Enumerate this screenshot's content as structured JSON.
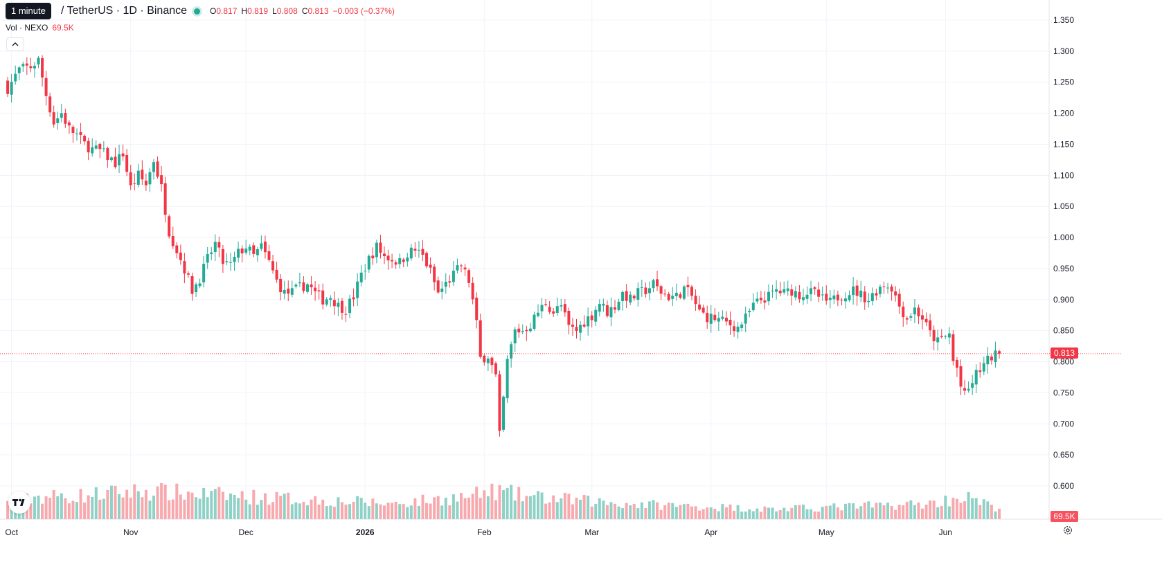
{
  "tooltip": "1 minute",
  "header": {
    "symbol": "/ TetherUS · 1D · Binance",
    "open_label": "O",
    "open": "0.817",
    "high_label": "H",
    "high": "0.819",
    "low_label": "L",
    "low": "0.808",
    "close_label": "C",
    "close": "0.813",
    "change": "−0.003 (−0.37%)"
  },
  "volume_legend": {
    "label": "Vol · NEXO",
    "value": "69.5K"
  },
  "last_price_tag": "0.813",
  "volume_tag": "69.5K",
  "logo_text": "TV",
  "colors": {
    "up": "#22ab94",
    "down": "#f23645",
    "up_volume": "#8fd1c6",
    "down_volume": "#f7a9ae",
    "grid": "#f0f3fa"
  },
  "chart_data": {
    "type": "candlestick",
    "title": "",
    "xlabel": "",
    "ylabel": "",
    "ylim": [
      0.587,
      1.372
    ],
    "y_ticks": [
      "1.350",
      "1.300",
      "1.250",
      "1.200",
      "1.150",
      "1.100",
      "1.050",
      "1.000",
      "0.950",
      "0.900",
      "0.850",
      "0.800",
      "0.750",
      "0.700",
      "0.650",
      "0.600"
    ],
    "x_ticks": [
      "Oct",
      "Nov",
      "Dec",
      "2026",
      "Feb",
      "Mar",
      "Apr",
      "May",
      "Jun"
    ],
    "x_tick_days": [
      1,
      32,
      62,
      93,
      124,
      152,
      183,
      213,
      244
    ],
    "last_price": 0.813,
    "volume_last": "69.5K",
    "grid": true,
    "close_anchors": [
      [
        0,
        1.24
      ],
      [
        3,
        1.27
      ],
      [
        6,
        1.275
      ],
      [
        8,
        1.285
      ],
      [
        10,
        1.23
      ],
      [
        12,
        1.185
      ],
      [
        14,
        1.2
      ],
      [
        16,
        1.175
      ],
      [
        18,
        1.165
      ],
      [
        20,
        1.15
      ],
      [
        22,
        1.142
      ],
      [
        24,
        1.14
      ],
      [
        26,
        1.13
      ],
      [
        28,
        1.12
      ],
      [
        30,
        1.135
      ],
      [
        32,
        1.08
      ],
      [
        34,
        1.1
      ],
      [
        36,
        1.085
      ],
      [
        38,
        1.125
      ],
      [
        40,
        1.08
      ],
      [
        42,
        1.01
      ],
      [
        44,
        0.98
      ],
      [
        46,
        0.95
      ],
      [
        48,
        0.915
      ],
      [
        50,
        0.935
      ],
      [
        52,
        0.965
      ],
      [
        54,
        0.99
      ],
      [
        56,
        0.96
      ],
      [
        58,
        0.955
      ],
      [
        60,
        0.975
      ],
      [
        62,
        0.985
      ],
      [
        64,
        0.97
      ],
      [
        66,
        0.985
      ],
      [
        68,
        0.96
      ],
      [
        70,
        0.93
      ],
      [
        72,
        0.91
      ],
      [
        74,
        0.912
      ],
      [
        76,
        0.92
      ],
      [
        78,
        0.925
      ],
      [
        80,
        0.91
      ],
      [
        82,
        0.9
      ],
      [
        84,
        0.905
      ],
      [
        86,
        0.89
      ],
      [
        88,
        0.885
      ],
      [
        90,
        0.905
      ],
      [
        92,
        0.94
      ],
      [
        94,
        0.965
      ],
      [
        96,
        0.985
      ],
      [
        98,
        0.97
      ],
      [
        100,
        0.965
      ],
      [
        102,
        0.96
      ],
      [
        104,
        0.975
      ],
      [
        106,
        0.98
      ],
      [
        108,
        0.97
      ],
      [
        110,
        0.945
      ],
      [
        112,
        0.91
      ],
      [
        114,
        0.925
      ],
      [
        116,
        0.94
      ],
      [
        118,
        0.955
      ],
      [
        120,
        0.93
      ],
      [
        121,
        0.898
      ],
      [
        122,
        0.86
      ],
      [
        123,
        0.805
      ],
      [
        125,
        0.81
      ],
      [
        127,
        0.775
      ],
      [
        128,
        0.68
      ],
      [
        129,
        0.74
      ],
      [
        130,
        0.8
      ],
      [
        132,
        0.85
      ],
      [
        134,
        0.85
      ],
      [
        136,
        0.86
      ],
      [
        138,
        0.88
      ],
      [
        140,
        0.895
      ],
      [
        142,
        0.88
      ],
      [
        144,
        0.89
      ],
      [
        146,
        0.855
      ],
      [
        148,
        0.85
      ],
      [
        150,
        0.865
      ],
      [
        152,
        0.875
      ],
      [
        154,
        0.895
      ],
      [
        156,
        0.88
      ],
      [
        158,
        0.89
      ],
      [
        160,
        0.91
      ],
      [
        162,
        0.9
      ],
      [
        164,
        0.91
      ],
      [
        166,
        0.915
      ],
      [
        168,
        0.925
      ],
      [
        170,
        0.912
      ],
      [
        172,
        0.905
      ],
      [
        174,
        0.905
      ],
      [
        176,
        0.918
      ],
      [
        178,
        0.905
      ],
      [
        180,
        0.88
      ],
      [
        182,
        0.872
      ],
      [
        184,
        0.87
      ],
      [
        186,
        0.865
      ],
      [
        188,
        0.86
      ],
      [
        190,
        0.855
      ],
      [
        192,
        0.87
      ],
      [
        194,
        0.89
      ],
      [
        196,
        0.9
      ],
      [
        198,
        0.905
      ],
      [
        200,
        0.915
      ],
      [
        202,
        0.91
      ],
      [
        204,
        0.915
      ],
      [
        206,
        0.908
      ],
      [
        208,
        0.912
      ],
      [
        210,
        0.91
      ],
      [
        212,
        0.9
      ],
      [
        214,
        0.895
      ],
      [
        216,
        0.905
      ],
      [
        218,
        0.91
      ],
      [
        220,
        0.915
      ],
      [
        222,
        0.908
      ],
      [
        224,
        0.9
      ],
      [
        226,
        0.915
      ],
      [
        228,
        0.925
      ],
      [
        230,
        0.92
      ],
      [
        232,
        0.89
      ],
      [
        234,
        0.87
      ],
      [
        236,
        0.885
      ],
      [
        238,
        0.87
      ],
      [
        240,
        0.845
      ],
      [
        242,
        0.832
      ],
      [
        244,
        0.84
      ],
      [
        245,
        0.845
      ],
      [
        246,
        0.8
      ],
      [
        247,
        0.79
      ],
      [
        248,
        0.76
      ],
      [
        249,
        0.745
      ],
      [
        250,
        0.755
      ],
      [
        252,
        0.78
      ],
      [
        254,
        0.795
      ],
      [
        256,
        0.808
      ],
      [
        258,
        0.813
      ]
    ],
    "volume_anchors": [
      [
        0,
        "medium"
      ],
      [
        8,
        "high"
      ],
      [
        16,
        "high"
      ],
      [
        35,
        "very high"
      ],
      [
        62,
        "high"
      ],
      [
        100,
        "medium"
      ],
      [
        120,
        "high"
      ],
      [
        127,
        "very high"
      ],
      [
        135,
        "high"
      ],
      [
        160,
        "medium"
      ],
      [
        200,
        "low"
      ],
      [
        240,
        "medium"
      ],
      [
        249,
        "high"
      ],
      [
        258,
        "low"
      ]
    ]
  }
}
